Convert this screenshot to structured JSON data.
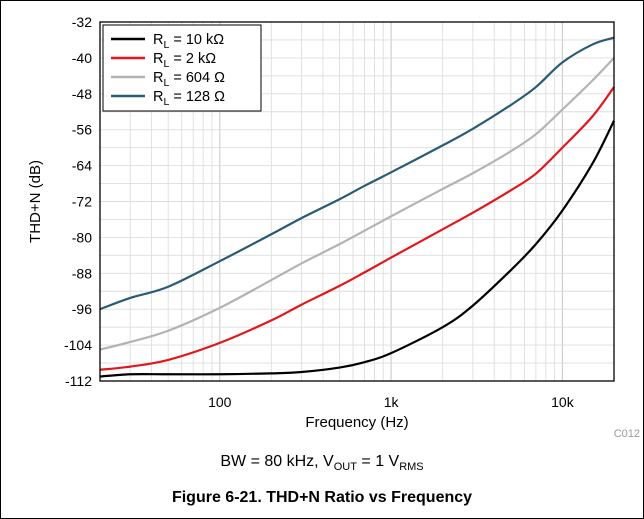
{
  "chart_data": {
    "type": "line",
    "xscale": "log",
    "xlim": [
      20,
      20000
    ],
    "ylim": [
      -112,
      -32
    ],
    "xlabel": "Frequency (Hz)",
    "ylabel": "THD+N (dB)",
    "xticks": [
      {
        "value": 100,
        "label": "100"
      },
      {
        "value": 1000,
        "label": "1k"
      },
      {
        "value": 10000,
        "label": "10k"
      }
    ],
    "yticks": [
      {
        "value": -32,
        "label": "-32"
      },
      {
        "value": -40,
        "label": "-40"
      },
      {
        "value": -48,
        "label": "-48"
      },
      {
        "value": -56,
        "label": "-56"
      },
      {
        "value": -64,
        "label": "-64"
      },
      {
        "value": -72,
        "label": "-72"
      },
      {
        "value": -80,
        "label": "-80"
      },
      {
        "value": -88,
        "label": "-88"
      },
      {
        "value": -96,
        "label": "-96"
      },
      {
        "value": -104,
        "label": "-104"
      },
      {
        "value": -112,
        "label": "-112"
      }
    ],
    "grid": true,
    "legend_position": "top-left",
    "figure_code": "C012",
    "series": [
      {
        "sub": "L",
        "value": "10 kΩ",
        "color": "#000000",
        "x": [
          20,
          30,
          50,
          100,
          200,
          300,
          500,
          700,
          1000,
          2000,
          3000,
          5000,
          7000,
          10000,
          15000,
          20000
        ],
        "y": [
          -111.0,
          -110.5,
          -110.5,
          -110.5,
          -110.3,
          -110.0,
          -109.0,
          -107.8,
          -105.8,
          -100.0,
          -95.2,
          -87.3,
          -81.5,
          -74.0,
          -63.5,
          -54.0
        ]
      },
      {
        "sub": "L",
        "value": "2 kΩ",
        "color": "#e3171b",
        "x": [
          20,
          30,
          50,
          100,
          200,
          300,
          500,
          700,
          1000,
          2000,
          3000,
          5000,
          7000,
          10000,
          15000,
          20000
        ],
        "y": [
          -109.5,
          -108.8,
          -107.3,
          -103.5,
          -98.5,
          -95.0,
          -90.8,
          -87.8,
          -84.5,
          -78.2,
          -74.5,
          -69.5,
          -65.8,
          -60.0,
          -53.0,
          -46.5
        ]
      },
      {
        "sub": "L",
        "value": "604 Ω",
        "color": "#b3b3b3",
        "x": [
          20,
          30,
          50,
          100,
          200,
          300,
          500,
          700,
          1000,
          2000,
          3000,
          5000,
          7000,
          10000,
          15000,
          20000
        ],
        "y": [
          -105.0,
          -103.3,
          -100.8,
          -95.7,
          -89.5,
          -85.8,
          -81.5,
          -78.5,
          -75.3,
          -69.2,
          -65.7,
          -60.8,
          -57.0,
          -51.5,
          -45.0,
          -40.0
        ]
      },
      {
        "sub": "L",
        "value": "128 Ω",
        "color": "#2a5b75",
        "x": [
          20,
          30,
          50,
          100,
          200,
          300,
          500,
          700,
          1000,
          2000,
          3000,
          5000,
          7000,
          10000,
          15000,
          20000
        ],
        "y": [
          -96.0,
          -93.5,
          -91.0,
          -85.3,
          -79.3,
          -75.7,
          -71.5,
          -68.5,
          -65.5,
          -59.5,
          -55.8,
          -50.5,
          -46.5,
          -41.0,
          -37.0,
          -35.5
        ]
      }
    ]
  },
  "condition": {
    "bw": "BW = 80 kHz, V",
    "vout_sub": "OUT",
    "mid": " = 1 V",
    "rms_sub": "RMS"
  },
  "caption": "Figure 6-21. THD+N Ratio vs Frequency"
}
